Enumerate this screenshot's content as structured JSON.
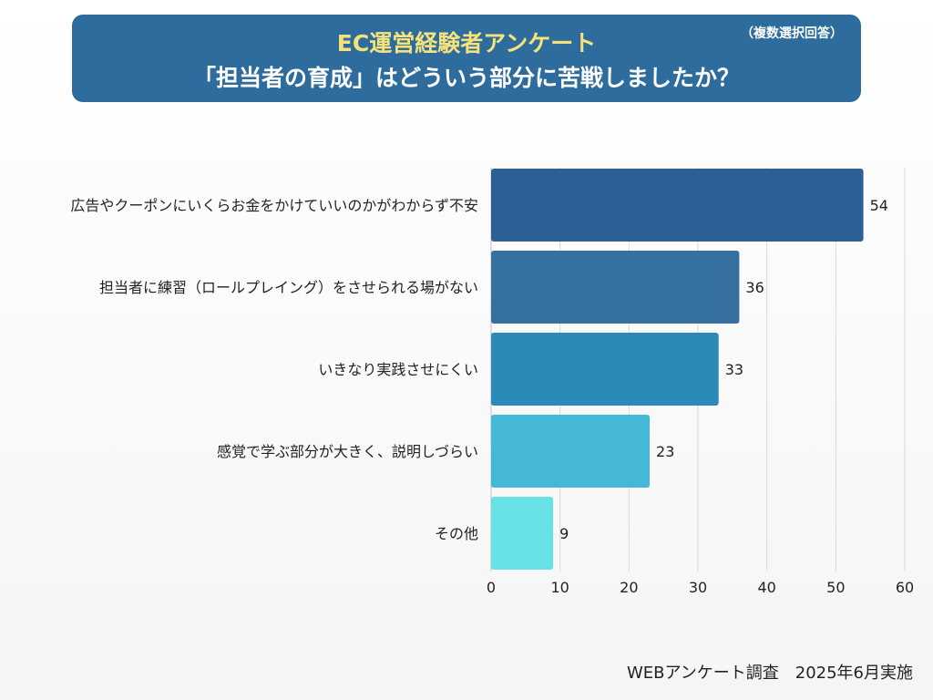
{
  "header": {
    "title_line1": "EC運営経験者アンケート",
    "title_line2": "「担当者の育成」はどういう部分に苦戦しましたか？",
    "note": "（複数選択回答）"
  },
  "footer": {
    "source": "WEBアンケート調査　2025年6月実施"
  },
  "colors": {
    "banner": "#2d6c9c",
    "title_accent": "#f6e27a",
    "bars": [
      "#2e5e96",
      "#3570a0",
      "#2b8ab8",
      "#44b8d6",
      "#68e2e6"
    ]
  },
  "chart_data": {
    "type": "bar",
    "orientation": "horizontal",
    "title": "「担当者の育成」はどういう部分に苦戦しましたか？",
    "categories": [
      "広告やクーポンにいくらお金をかけていいのかがわからず不安",
      "担当者に練習（ロールプレイング）をさせられる場がない",
      "いきなり実践させにくい",
      "感覚で学ぶ部分が大きく、説明しづらい",
      "その他"
    ],
    "values": [
      54,
      36,
      33,
      23,
      9
    ],
    "xlim": [
      0,
      60
    ],
    "ticks": [
      0,
      10,
      20,
      30,
      40,
      50,
      60
    ],
    "grid": true,
    "xlabel": "",
    "ylabel": ""
  }
}
